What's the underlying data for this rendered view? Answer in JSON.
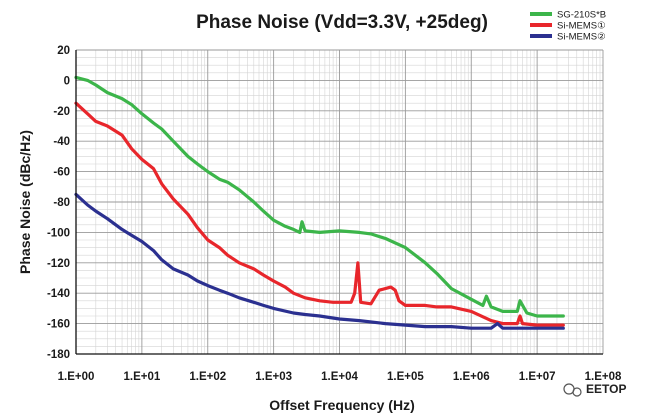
{
  "chart_data": {
    "type": "line",
    "title": "Phase Noise (Vdd=3.3V, +25deg)",
    "xlabel": "Offset Frequency (Hz)",
    "ylabel": "Phase Noise (dBc/Hz)",
    "x_scale": "log",
    "xlim": [
      1,
      100000000
    ],
    "ylim": [
      -180,
      20
    ],
    "x_ticks": [
      "1.E+00",
      "1.E+01",
      "1.E+02",
      "1.E+03",
      "1.E+04",
      "1.E+05",
      "1.E+06",
      "1.E+07",
      "1.E+08"
    ],
    "y_ticks": [
      20,
      0,
      -20,
      -40,
      -60,
      -80,
      -100,
      -120,
      -140,
      -160,
      -180
    ],
    "grid": true,
    "legend_position": "top-right",
    "series": [
      {
        "name": "SG-210S*B",
        "color": "#3cb54a",
        "x": [
          1,
          1.5,
          2,
          3,
          5,
          7,
          10,
          15,
          20,
          30,
          50,
          70,
          100,
          150,
          200,
          300,
          500,
          700,
          1000,
          1500,
          2000,
          2500,
          2700,
          3000,
          5000,
          10000,
          20000,
          30000,
          50000,
          100000,
          200000,
          300000,
          500000,
          1000000,
          1500000,
          1700000,
          2000000,
          3000000,
          5000000,
          5500000,
          7000000,
          10000000,
          25000000
        ],
        "y": [
          2,
          0,
          -3,
          -8,
          -12,
          -16,
          -22,
          -28,
          -32,
          -40,
          -50,
          -55,
          -60,
          -65,
          -67,
          -72,
          -80,
          -86,
          -92,
          -96,
          -98,
          -100,
          -93,
          -99,
          -100,
          -99,
          -100,
          -101,
          -104,
          -110,
          -120,
          -127,
          -137,
          -144,
          -148,
          -142,
          -149,
          -152,
          -152,
          -145,
          -153,
          -155,
          -155
        ]
      },
      {
        "name": "Si-MEMS①",
        "color": "#e8262b",
        "x": [
          1,
          1.5,
          2,
          3,
          5,
          7,
          10,
          15,
          20,
          30,
          50,
          70,
          100,
          150,
          200,
          300,
          500,
          700,
          1000,
          1500,
          2000,
          3000,
          5000,
          8000,
          10000,
          15000,
          17000,
          19000,
          21000,
          30000,
          40000,
          60000,
          70000,
          80000,
          100000,
          200000,
          300000,
          500000,
          1000000,
          2000000,
          3000000,
          5000000,
          5500000,
          6000000,
          10000000,
          25000000
        ],
        "y": [
          -15,
          -22,
          -27,
          -30,
          -36,
          -45,
          -52,
          -58,
          -68,
          -78,
          -88,
          -97,
          -105,
          -110,
          -115,
          -120,
          -124,
          -128,
          -132,
          -136,
          -140,
          -143,
          -145,
          -146,
          -146,
          -146,
          -140,
          -120,
          -146,
          -147,
          -138,
          -136,
          -138,
          -145,
          -148,
          -148,
          -149,
          -149,
          -152,
          -158,
          -160,
          -160,
          -155,
          -160,
          -161,
          -161
        ]
      },
      {
        "name": "Si-MEMS②",
        "color": "#2b3090",
        "x": [
          1,
          1.5,
          2,
          3,
          5,
          7,
          10,
          15,
          20,
          30,
          50,
          70,
          100,
          150,
          200,
          300,
          500,
          700,
          1000,
          2000,
          3000,
          5000,
          10000,
          20000,
          50000,
          100000,
          200000,
          500000,
          1000000,
          2000000,
          2500000,
          3000000,
          10000000,
          25000000
        ],
        "y": [
          -75,
          -82,
          -86,
          -91,
          -98,
          -102,
          -106,
          -112,
          -118,
          -124,
          -128,
          -132,
          -135,
          -138,
          -140,
          -143,
          -146,
          -148,
          -150,
          -153,
          -154,
          -155,
          -157,
          -158,
          -160,
          -161,
          -162,
          -162,
          -163,
          -163,
          -160,
          -163,
          -163,
          -163
        ]
      }
    ],
    "annotations": [
      "EETOP"
    ]
  }
}
